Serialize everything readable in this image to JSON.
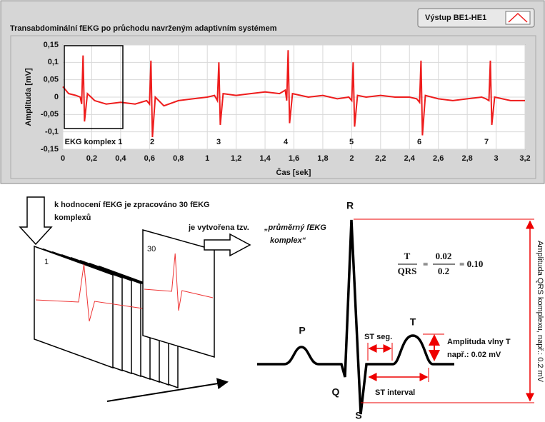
{
  "panel": {
    "title": "Transabdominální fEKG po průchodu navrženým adaptivním systémem"
  },
  "chart_data": {
    "type": "line",
    "x_label": "Čas [sek]",
    "y_label": "Amplituda [mV]",
    "xlim": [
      0,
      3.2
    ],
    "ylim": [
      -0.15,
      0.15
    ],
    "grid": true,
    "xticks": [
      0,
      {
        "value": 0.2,
        "label": "0,2"
      },
      {
        "value": 0.4,
        "label": "0,4"
      },
      {
        "value": 0.6,
        "label": "0,6"
      },
      {
        "value": 0.8,
        "label": "0,8"
      },
      1,
      {
        "value": 1.2,
        "label": "1,2"
      },
      {
        "value": 1.4,
        "label": "1,4"
      },
      {
        "value": 1.6,
        "label": "1,6"
      },
      {
        "value": 1.8,
        "label": "1,8"
      },
      2,
      {
        "value": 2.2,
        "label": "2,2"
      },
      {
        "value": 2.4,
        "label": "2,4"
      },
      {
        "value": 2.6,
        "label": "2,6"
      },
      {
        "value": 2.8,
        "label": "2,8"
      },
      3,
      {
        "value": 3.2,
        "label": "3,2"
      }
    ],
    "yticks": [
      {
        "value": 0.15,
        "label": "0,15"
      },
      {
        "value": 0.1,
        "label": "0,1"
      },
      {
        "value": 0.05,
        "label": "0,05"
      },
      0,
      {
        "value": -0.05,
        "label": "-0,05"
      },
      {
        "value": -0.1,
        "label": "-0,1"
      },
      {
        "value": -0.15,
        "label": "-0,15"
      }
    ],
    "series": [
      {
        "name": "Výstup BE1-HE1",
        "color": "#ee1c1c",
        "x": [
          0,
          0.04,
          0.09,
          0.12,
          0.13,
          0.14,
          0.15,
          0.17,
          0.22,
          0.3,
          0.4,
          0.5,
          0.58,
          0.6,
          0.61,
          0.62,
          0.64,
          0.7,
          0.8,
          0.9,
          1.0,
          1.05,
          1.07,
          1.08,
          1.09,
          1.11,
          1.2,
          1.3,
          1.4,
          1.5,
          1.54,
          1.55,
          1.56,
          1.57,
          1.59,
          1.7,
          1.8,
          1.9,
          1.98,
          2.0,
          2.01,
          2.02,
          2.04,
          2.1,
          2.2,
          2.3,
          2.4,
          2.45,
          2.47,
          2.48,
          2.49,
          2.51,
          2.6,
          2.7,
          2.8,
          2.9,
          2.93,
          2.95,
          2.96,
          2.97,
          2.99,
          3.1,
          3.2
        ],
        "values": [
          0.03,
          0.01,
          0.005,
          0.0,
          -0.02,
          0.12,
          -0.07,
          0.01,
          -0.01,
          -0.02,
          -0.015,
          -0.02,
          -0.01,
          -0.02,
          0.105,
          -0.115,
          0.0,
          -0.025,
          -0.01,
          -0.005,
          0.0,
          0.005,
          -0.01,
          0.1,
          -0.08,
          0.01,
          0.005,
          0.01,
          0.015,
          0.01,
          0.02,
          -0.01,
          0.135,
          -0.075,
          0.01,
          0.0,
          0.005,
          -0.005,
          0.0,
          -0.01,
          0.1,
          -0.085,
          0.005,
          0.0,
          0.005,
          0.0,
          0.0,
          -0.005,
          -0.015,
          0.105,
          -0.11,
          0.005,
          -0.005,
          -0.01,
          -0.005,
          0.0,
          -0.005,
          -0.01,
          0.105,
          -0.08,
          0.0,
          -0.01,
          -0.01
        ]
      }
    ],
    "annotations": [
      "EKG komplex 1",
      "2",
      "3",
      "4",
      "5",
      "6",
      "7"
    ]
  },
  "steps": {
    "note": [
      "k hodnocení fEKG je zpracováno 30 fEKG",
      "komplexů"
    ],
    "first": "1",
    "last": "30",
    "average": {
      "prefix": "je vytvořena tzv.",
      "italic": [
        "„průměrný fEKG",
        "komplex“"
      ]
    }
  },
  "complex": {
    "waves": {
      "P": "P",
      "Q": "Q",
      "R": "R",
      "S": "S",
      "T": "T"
    },
    "st_segment": "ST seg.",
    "st_interval": "ST interval",
    "t_amplitude": [
      "Amplituda vlny T",
      "např.: 0.02 mV"
    ],
    "qrs_amplitude": "Amplituda QRS komplexu, např.: 0.2 mV",
    "formula": {
      "num": "T",
      "den": "QRS",
      "num2": "0.02",
      "den2": "0.2",
      "result": "= 0.10"
    }
  }
}
